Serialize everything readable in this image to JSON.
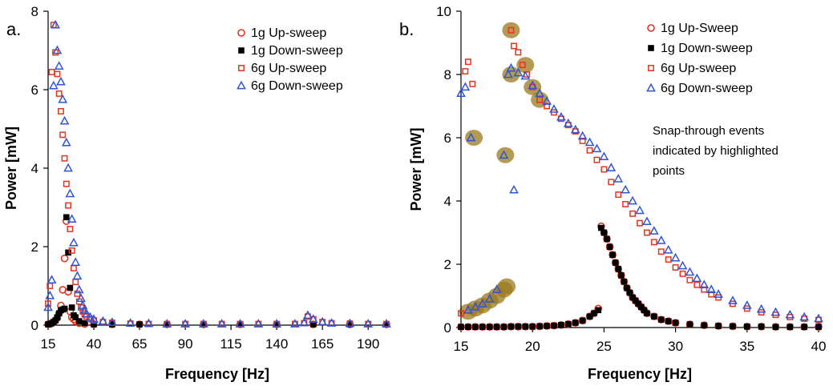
{
  "colors": {
    "up_1g": "#e8331f",
    "down_1g": "#000000",
    "up_6g": "#e8331f",
    "down_6g": "#2f55d4",
    "highlight": "#9a7a1c"
  },
  "chart_data": [
    {
      "type": "scatter",
      "panel_label": "a.",
      "xlabel": "Frequency [Hz]",
      "ylabel": "Power [mW]",
      "xlim": [
        15,
        200
      ],
      "ylim": [
        0,
        8
      ],
      "xticks": [
        "15",
        "40",
        "65",
        "90",
        "115",
        "140",
        "165",
        "190"
      ],
      "yticks": [
        "0",
        "2",
        "4",
        "6",
        "8"
      ],
      "grid": false,
      "legend_position": "top-right",
      "series": [
        {
          "name": "1g Up-sweep",
          "marker": "open-circle",
          "color": "#e8331f",
          "x": [
            15,
            16,
            17,
            18,
            19,
            20,
            21,
            22,
            23,
            24,
            25,
            26,
            27,
            28,
            29,
            30,
            32,
            35,
            40,
            50,
            65,
            80,
            100,
            120,
            140,
            160,
            180,
            200
          ],
          "y": [
            0.02,
            0.03,
            0.05,
            0.08,
            0.12,
            0.18,
            0.3,
            0.5,
            0.9,
            1.7,
            2.65,
            0.85,
            0.35,
            0.2,
            0.15,
            0.1,
            0.05,
            0.03,
            0.02,
            0.02,
            0.02,
            0.02,
            0.02,
            0.02,
            0.02,
            0.02,
            0.02,
            0.02
          ]
        },
        {
          "name": "1g Down-sweep",
          "marker": "filled-square",
          "color": "#000000",
          "x": [
            200,
            180,
            160,
            140,
            120,
            100,
            80,
            65,
            50,
            40,
            35,
            32,
            30,
            29,
            28,
            27,
            26,
            25,
            24,
            23,
            22,
            21,
            20,
            19,
            18,
            17,
            16,
            15
          ],
          "y": [
            0.02,
            0.02,
            0.02,
            0.02,
            0.02,
            0.02,
            0.02,
            0.02,
            0.02,
            0.02,
            0.05,
            0.1,
            0.2,
            0.25,
            0.45,
            0.95,
            1.85,
            2.75,
            0.42,
            0.4,
            0.38,
            0.3,
            0.2,
            0.12,
            0.08,
            0.05,
            0.03,
            0.02
          ]
        },
        {
          "name": "6g Up-sweep",
          "marker": "open-square",
          "color": "#e8331f",
          "x": [
            15,
            16,
            17,
            18,
            19,
            20,
            21,
            22,
            23,
            24,
            25,
            26,
            27,
            28,
            29,
            30,
            31,
            32,
            33,
            34,
            35,
            36,
            38,
            40,
            45,
            50,
            60,
            70,
            80,
            90,
            100,
            110,
            120,
            130,
            140,
            150,
            155,
            157,
            160,
            165,
            170,
            180,
            190,
            200
          ],
          "y": [
            0.55,
            1.0,
            6.45,
            7.65,
            6.95,
            6.4,
            5.9,
            5.45,
            4.85,
            4.25,
            3.6,
            3.05,
            2.45,
            1.9,
            1.45,
            1.1,
            0.8,
            0.6,
            0.45,
            0.35,
            0.28,
            0.22,
            0.16,
            0.12,
            0.08,
            0.06,
            0.04,
            0.03,
            0.03,
            0.03,
            0.03,
            0.03,
            0.03,
            0.03,
            0.03,
            0.03,
            0.05,
            0.22,
            0.15,
            0.08,
            0.05,
            0.04,
            0.03,
            0.03
          ]
        },
        {
          "name": "6g Down-sweep",
          "marker": "open-triangle",
          "color": "#2f55d4",
          "x": [
            200,
            190,
            180,
            170,
            165,
            160,
            157,
            155,
            150,
            140,
            130,
            120,
            110,
            100,
            90,
            80,
            70,
            60,
            50,
            45,
            40,
            38,
            36,
            35,
            34,
            33,
            32,
            31,
            30,
            29,
            28,
            27,
            26,
            25,
            24,
            23,
            22,
            21,
            20,
            19,
            18,
            17,
            16,
            15
          ],
          "y": [
            0.03,
            0.03,
            0.04,
            0.05,
            0.08,
            0.15,
            0.25,
            0.06,
            0.03,
            0.03,
            0.03,
            0.03,
            0.03,
            0.03,
            0.03,
            0.03,
            0.04,
            0.05,
            0.07,
            0.1,
            0.15,
            0.2,
            0.28,
            0.38,
            0.5,
            0.68,
            0.9,
            1.25,
            1.6,
            2.1,
            2.7,
            3.35,
            4.0,
            4.65,
            5.2,
            5.75,
            6.2,
            6.6,
            7.0,
            7.65,
            6.1,
            1.15,
            0.75,
            0.45
          ]
        }
      ]
    },
    {
      "type": "scatter",
      "panel_label": "b.",
      "xlabel": "Frequency [Hz]",
      "ylabel": "Power [mW]",
      "xlim": [
        15,
        40
      ],
      "ylim": [
        0,
        10
      ],
      "xticks": [
        "15",
        "20",
        "25",
        "30",
        "35",
        "40"
      ],
      "yticks": [
        "0",
        "2",
        "4",
        "6",
        "8",
        "10"
      ],
      "grid": false,
      "legend_position": "top-right",
      "annotation": [
        "Snap-through events",
        "indicated by highlighted",
        "points"
      ],
      "series": [
        {
          "name": "1g Up-Sweep",
          "marker": "open-circle",
          "color": "#e8331f",
          "x": [
            15,
            15.5,
            16,
            16.5,
            17,
            17.5,
            18,
            18.5,
            19,
            19.5,
            20,
            20.5,
            21,
            21.5,
            22,
            22.5,
            23,
            23.5,
            24,
            24.3,
            24.6,
            24.8,
            25,
            25.2,
            25.4,
            25.6,
            25.8,
            26,
            26.2,
            26.4,
            26.6,
            26.8,
            27,
            27.2,
            27.4,
            27.6,
            27.8,
            28,
            28.5,
            29,
            29.5,
            30,
            31,
            32,
            33,
            34,
            35,
            36,
            37,
            38,
            39,
            40
          ],
          "y": [
            0.02,
            0.02,
            0.02,
            0.02,
            0.02,
            0.02,
            0.02,
            0.03,
            0.03,
            0.03,
            0.03,
            0.04,
            0.05,
            0.06,
            0.08,
            0.11,
            0.15,
            0.22,
            0.35,
            0.45,
            0.6,
            3.2,
            3.0,
            2.8,
            2.55,
            2.3,
            2.05,
            1.85,
            1.65,
            1.45,
            1.25,
            1.1,
            0.95,
            0.85,
            0.75,
            0.65,
            0.55,
            0.45,
            0.35,
            0.25,
            0.2,
            0.15,
            0.1,
            0.07,
            0.05,
            0.04,
            0.03,
            0.03,
            0.02,
            0.02,
            0.02,
            0.02
          ]
        },
        {
          "name": "1g Down-sweep",
          "marker": "filled-square",
          "color": "#000000",
          "x": [
            40,
            39,
            38,
            37,
            36,
            35,
            34,
            33,
            32,
            31,
            30,
            29.5,
            29,
            28.5,
            28,
            27.8,
            27.6,
            27.4,
            27.2,
            27,
            26.8,
            26.6,
            26.4,
            26.2,
            26,
            25.8,
            25.6,
            25.4,
            25.2,
            25,
            24.8,
            24.6,
            24.3,
            24,
            23.5,
            23,
            22.5,
            22,
            21.5,
            21,
            20.5,
            20,
            19.5,
            19,
            18.5,
            18,
            17.5,
            17,
            16.5,
            16,
            15.5,
            15
          ],
          "y": [
            0.02,
            0.02,
            0.02,
            0.02,
            0.03,
            0.03,
            0.04,
            0.05,
            0.07,
            0.1,
            0.15,
            0.2,
            0.25,
            0.35,
            0.45,
            0.55,
            0.65,
            0.75,
            0.85,
            0.95,
            1.1,
            1.25,
            1.45,
            1.65,
            1.85,
            2.05,
            2.3,
            2.55,
            2.8,
            3.0,
            3.15,
            0.55,
            0.45,
            0.35,
            0.22,
            0.15,
            0.11,
            0.08,
            0.06,
            0.05,
            0.04,
            0.03,
            0.03,
            0.03,
            0.03,
            0.02,
            0.02,
            0.02,
            0.02,
            0.02,
            0.02,
            0.02
          ]
        },
        {
          "name": "6g Up-sweep",
          "marker": "open-square",
          "color": "#e8331f",
          "x": [
            15,
            15.3,
            15.5,
            15.8,
            18.5,
            18.7,
            19,
            19.3,
            19.6,
            20,
            20.5,
            21,
            21.5,
            22,
            22.5,
            23,
            23.5,
            24,
            24.5,
            25,
            25.5,
            26,
            26.5,
            27,
            27.5,
            28,
            28.5,
            29,
            29.5,
            30,
            30.5,
            31,
            31.5,
            32,
            32.5,
            33,
            34,
            35,
            36,
            37,
            38,
            39,
            40
          ],
          "y": [
            0.45,
            8.1,
            8.4,
            7.7,
            9.4,
            8.9,
            8.7,
            8.3,
            8.0,
            7.6,
            7.2,
            7.0,
            6.8,
            6.6,
            6.4,
            6.2,
            5.9,
            5.6,
            5.3,
            5.0,
            4.6,
            4.2,
            3.9,
            3.6,
            3.3,
            3.0,
            2.7,
            2.4,
            2.15,
            1.9,
            1.7,
            1.5,
            1.35,
            1.2,
            1.05,
            0.95,
            0.75,
            0.6,
            0.48,
            0.4,
            0.33,
            0.28,
            0.24
          ]
        },
        {
          "name": "6g Down-sweep",
          "marker": "open-triangle",
          "color": "#2f55d4",
          "x": [
            40,
            39,
            38,
            37,
            36,
            35,
            34,
            33,
            32.5,
            32,
            31.5,
            31,
            30.5,
            30,
            29.5,
            29,
            28.5,
            28,
            27.5,
            27,
            26.5,
            26,
            25.5,
            25,
            24.5,
            24,
            23.5,
            23,
            22.5,
            22,
            21.5,
            21,
            20.5,
            20,
            19.5,
            19,
            18.7,
            18.5,
            18.3,
            18,
            17.5,
            17,
            16.5,
            16,
            15.5,
            15.7,
            15.3,
            15
          ],
          "y": [
            0.28,
            0.33,
            0.4,
            0.48,
            0.58,
            0.7,
            0.85,
            1.05,
            1.2,
            1.35,
            1.55,
            1.75,
            1.95,
            2.2,
            2.45,
            2.75,
            3.05,
            3.35,
            3.7,
            4.0,
            4.35,
            4.7,
            5.05,
            5.4,
            5.65,
            5.85,
            6.05,
            6.25,
            6.45,
            6.65,
            6.9,
            7.15,
            7.4,
            7.65,
            7.95,
            8.05,
            4.35,
            8.2,
            8.0,
            5.45,
            1.2,
            0.9,
            0.75,
            0.65,
            0.55,
            6.0,
            7.6,
            7.4
          ]
        }
      ],
      "highlighted_points": [
        {
          "x": 18.5,
          "y": 9.4
        },
        {
          "x": 19.5,
          "y": 8.3
        },
        {
          "x": 20,
          "y": 7.6
        },
        {
          "x": 20.5,
          "y": 7.2
        },
        {
          "x": 18.5,
          "y": 8.0
        },
        {
          "x": 15.9,
          "y": 6.0
        },
        {
          "x": 18.1,
          "y": 5.45
        },
        {
          "x": 15.5,
          "y": 0.5
        },
        {
          "x": 16,
          "y": 0.6
        },
        {
          "x": 16.5,
          "y": 0.7
        },
        {
          "x": 17,
          "y": 0.85
        },
        {
          "x": 17.5,
          "y": 1.0
        },
        {
          "x": 18,
          "y": 1.2
        },
        {
          "x": 18.2,
          "y": 1.3
        }
      ]
    }
  ]
}
